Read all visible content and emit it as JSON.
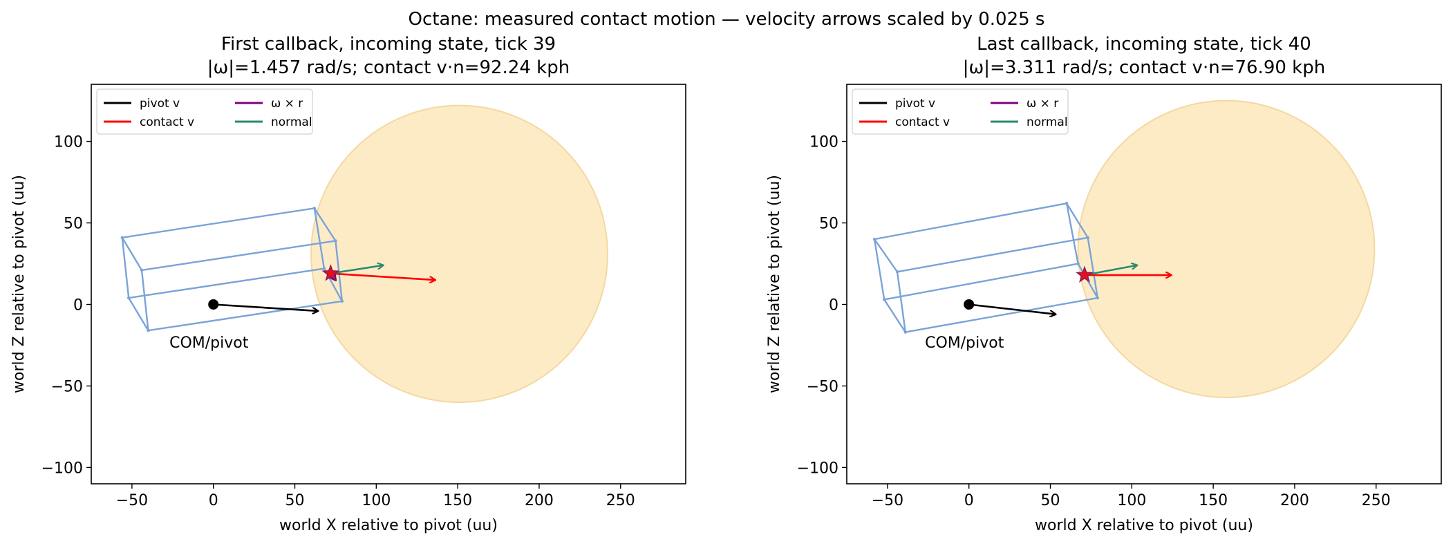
{
  "figure_title": "Octane: measured contact motion — velocity arrows scaled by 0.025 s",
  "colors": {
    "pivot": "#000000",
    "contact": "#ff0000",
    "omega": "#800080",
    "normal": "#2a8a6e",
    "box": "#7aa3d9",
    "ball_fill": "#fdebc6",
    "ball_edge": "#f4d8a0",
    "star": "#e0101e"
  },
  "chart_data": [
    {
      "type": "scatter",
      "title_line1": "First callback, incoming state, tick 39",
      "title_line2": "|ω|=1.457 rad/s; contact v·n=92.24 kph",
      "xlabel": "world X relative to pivot (uu)",
      "ylabel": "world Z relative to pivot (uu)",
      "xlim": [
        -75,
        290
      ],
      "ylim": [
        -110,
        135
      ],
      "xticks": [
        -50,
        0,
        50,
        100,
        150,
        200,
        250
      ],
      "yticks": [
        -100,
        -50,
        0,
        50,
        100
      ],
      "legend_position": "top-left",
      "legend": [
        "pivot v",
        "contact v",
        "ω × r",
        "normal"
      ],
      "annotation": {
        "text": "COM/pivot",
        "x": -27,
        "y": -23
      },
      "pivot": [
        0,
        0
      ],
      "ball": {
        "cx": 151,
        "cy": 31,
        "r": 91
      },
      "contact": [
        72,
        19
      ],
      "arrows": {
        "pivot_v": {
          "from": [
            0,
            0
          ],
          "to": [
            64,
            -4
          ]
        },
        "contact_v": {
          "from": [
            72,
            19
          ],
          "to": [
            136,
            15
          ]
        },
        "omega_r": {
          "from": [
            72,
            19
          ],
          "to": [
            75,
            15
          ]
        },
        "normal": {
          "from": [
            72,
            19
          ],
          "to": [
            104,
            24
          ]
        }
      },
      "box_vertices": [
        [
          -56,
          41
        ],
        [
          62,
          59
        ],
        [
          75,
          39
        ],
        [
          -44,
          21
        ],
        [
          -52,
          4
        ],
        [
          68,
          22
        ],
        [
          79,
          2
        ],
        [
          -40,
          -16
        ]
      ],
      "box_edges": [
        [
          0,
          1
        ],
        [
          1,
          2
        ],
        [
          2,
          3
        ],
        [
          3,
          0
        ],
        [
          0,
          4
        ],
        [
          4,
          5
        ],
        [
          5,
          1
        ],
        [
          4,
          7
        ],
        [
          7,
          6
        ],
        [
          6,
          5
        ],
        [
          2,
          6
        ],
        [
          3,
          7
        ]
      ]
    },
    {
      "type": "scatter",
      "title_line1": "Last callback, incoming state, tick 40",
      "title_line2": "|ω|=3.311 rad/s; contact v·n=76.90 kph",
      "xlabel": "world X relative to pivot (uu)",
      "ylabel": "world Z relative to pivot (uu)",
      "xlim": [
        -75,
        290
      ],
      "ylim": [
        -110,
        135
      ],
      "xticks": [
        -50,
        0,
        50,
        100,
        150,
        200,
        250
      ],
      "yticks": [
        -100,
        -50,
        0,
        50,
        100
      ],
      "legend_position": "top-left",
      "legend": [
        "pivot v",
        "contact v",
        "ω × r",
        "normal"
      ],
      "annotation": {
        "text": "COM/pivot",
        "x": -27,
        "y": -23
      },
      "pivot": [
        0,
        0
      ],
      "ball": {
        "cx": 158,
        "cy": 34,
        "r": 91
      },
      "contact": [
        71,
        18
      ],
      "arrows": {
        "pivot_v": {
          "from": [
            0,
            0
          ],
          "to": [
            53,
            -6
          ]
        },
        "contact_v": {
          "from": [
            71,
            18
          ],
          "to": [
            124,
            18
          ]
        },
        "omega_r": {
          "from": [
            71,
            18
          ],
          "to": [
            71,
            18
          ]
        },
        "normal": {
          "from": [
            71,
            18
          ],
          "to": [
            103,
            24
          ]
        }
      },
      "box_vertices": [
        [
          -58,
          40
        ],
        [
          60,
          62
        ],
        [
          73,
          41
        ],
        [
          -44,
          20
        ],
        [
          -52,
          3
        ],
        [
          67,
          25
        ],
        [
          79,
          4
        ],
        [
          -39,
          -17
        ]
      ],
      "box_edges": [
        [
          0,
          1
        ],
        [
          1,
          2
        ],
        [
          2,
          3
        ],
        [
          3,
          0
        ],
        [
          0,
          4
        ],
        [
          4,
          5
        ],
        [
          5,
          1
        ],
        [
          4,
          7
        ],
        [
          7,
          6
        ],
        [
          6,
          5
        ],
        [
          2,
          6
        ],
        [
          3,
          7
        ]
      ]
    }
  ]
}
